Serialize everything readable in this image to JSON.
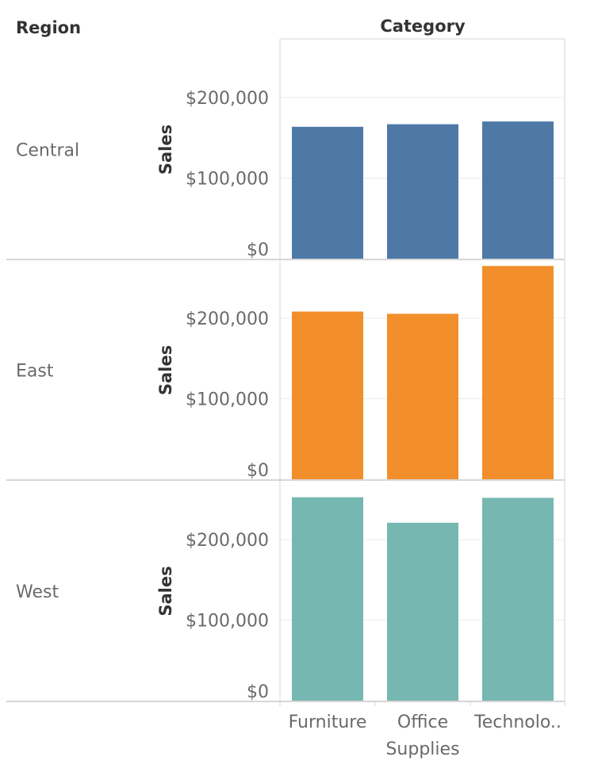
{
  "header": {
    "row_dimension": "Region",
    "column_dimension": "Category"
  },
  "chart_data": {
    "type": "bar",
    "categories": [
      "Furniture",
      "Office Supplies",
      "Technolo.."
    ],
    "category_lines": [
      [
        "Furniture"
      ],
      [
        "Office",
        "Supplies"
      ],
      [
        "Technolo.."
      ]
    ],
    "ylabel": "Sales",
    "yticks": [
      0,
      100000,
      200000
    ],
    "ytick_labels": [
      "$0",
      "$100,000",
      "$200,000"
    ],
    "ylim": [
      0,
      265000
    ],
    "grid": true,
    "panels": [
      {
        "region": "Central",
        "color": "#4e79a7",
        "values": [
          163800,
          167000,
          170400
        ]
      },
      {
        "region": "East",
        "color": "#f28e2b",
        "values": [
          208300,
          205500,
          264900
        ]
      },
      {
        "region": "West",
        "color": "#76b7b2",
        "values": [
          252600,
          220900,
          251900
        ]
      }
    ]
  }
}
